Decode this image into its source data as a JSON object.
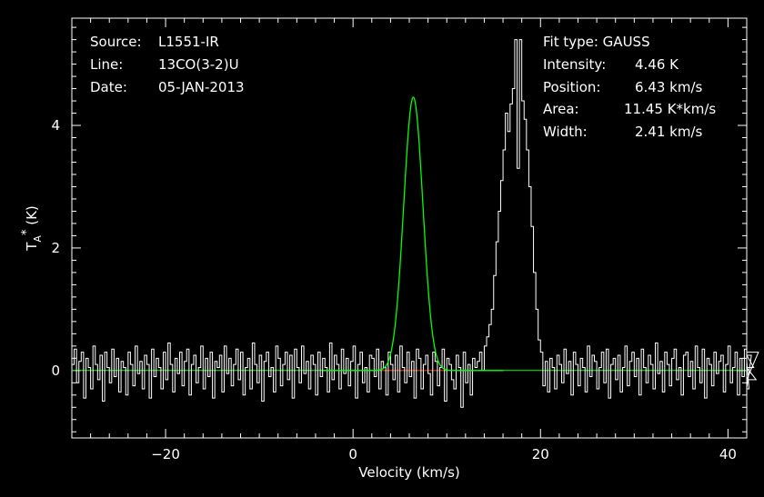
{
  "colors": {
    "background": "#000000",
    "axes": "#ffffff",
    "spectrum": "#ffffff",
    "fit": "#00ff00",
    "baseline_highlight": "#ff0000"
  },
  "header_left": [
    {
      "label": "Source:",
      "value": "L1551-IR"
    },
    {
      "label": "Line:",
      "value": "13CO(3-2)U"
    },
    {
      "label": "Date:",
      "value": "05-JAN-2013"
    }
  ],
  "header_right": {
    "fit_type": "Fit type: GAUSS",
    "rows": [
      {
        "label": "Intensity:",
        "value": "4.46 K"
      },
      {
        "label": "Position:",
        "value": "6.43 km/s"
      },
      {
        "label": "Area:",
        "value": "11.45 K*km/s"
      },
      {
        "label": "Width:",
        "value": "2.41 km/s"
      }
    ]
  },
  "chart_data": {
    "type": "line",
    "xlabel": "Velocity (km/s)",
    "ylabel": "T_A^* (K)",
    "xlim": [
      -30,
      42
    ],
    "ylim": [
      -1.1,
      5.75
    ],
    "x_ticks": [
      -20,
      0,
      20,
      40
    ],
    "x_tick_labels": [
      "−20",
      "0",
      "20",
      "40"
    ],
    "y_ticks": [
      0,
      2,
      4
    ],
    "y_tick_labels": [
      "0",
      "2",
      "4"
    ],
    "grid": false,
    "fit": {
      "intensity": 4.46,
      "position": 6.43,
      "width": 2.41,
      "area": 11.45
    },
    "spectrum": {
      "x_start": -30,
      "x_step": 0.25,
      "values": [
        0.1,
        0.35,
        -0.2,
        0.15,
        0.3,
        -0.45,
        0.2,
        0.05,
        -0.3,
        0.4,
        0.1,
        -0.15,
        0.25,
        -0.5,
        0.3,
        0.05,
        -0.2,
        0.35,
        -0.1,
        0.2,
        -0.35,
        0.15,
        0.05,
        -0.4,
        0.3,
        0.1,
        -0.25,
        0.4,
        -0.05,
        0.15,
        -0.3,
        0.25,
        0.1,
        -0.45,
        0.35,
        -0.1,
        0.2,
        0.05,
        -0.3,
        0.3,
        -0.15,
        0.45,
        0.1,
        -0.35,
        0.2,
        -0.05,
        0.3,
        -0.25,
        0.15,
        0.35,
        -0.4,
        0.1,
        0.25,
        -0.2,
        0.05,
        0.4,
        -0.3,
        0.2,
        -0.1,
        0.3,
        -0.45,
        0.15,
        0.05,
        0.25,
        -0.35,
        0.4,
        -0.05,
        0.2,
        -0.25,
        0.1,
        0.35,
        -0.15,
        0.3,
        -0.4,
        0.05,
        0.2,
        -0.3,
        0.45,
        0.1,
        -0.2,
        0.25,
        -0.5,
        0.15,
        0.3,
        -0.1,
        0.05,
        -0.35,
        0.4,
        0.2,
        -0.25,
        0.1,
        0.3,
        -0.15,
        0.25,
        -0.45,
        0.35,
        0.05,
        -0.2,
        0.4,
        -0.05,
        0.15,
        -0.3,
        0.25,
        0.1,
        -0.4,
        0.3,
        -0.1,
        0.2,
        0.05,
        -0.35,
        0.45,
        -0.15,
        0.25,
        0.1,
        -0.3,
        0.35,
        -0.05,
        0.2,
        -0.25,
        0.15,
        0.4,
        -0.45,
        0.1,
        0.3,
        -0.2,
        0.05,
        -0.35,
        0.25,
        0.2,
        -0.1,
        0.35,
        -0.3,
        0.15,
        0.05,
        -0.4,
        0.3,
        0.1,
        -0.15,
        0.25,
        -0.35,
        0.4,
        0.05,
        -0.2,
        0.3,
        -0.1,
        0.15,
        -0.45,
        0.35,
        0.2,
        -0.3,
        0.1,
        0.25,
        -0.05,
        -0.4,
        0.3,
        0.15,
        -0.25,
        0.05,
        0.35,
        -0.5,
        0.2,
        0.1,
        -0.15,
        -0.3,
        0.25,
        0.05,
        -0.6,
        0.3,
        -0.2,
        0.1,
        -0.4,
        0.2,
        0.05,
        0.15,
        0.3,
        0.0,
        0.4,
        0.55,
        0.75,
        1.0,
        1.55,
        2.1,
        2.6,
        3.1,
        3.6,
        4.2,
        3.9,
        4.35,
        4.6,
        5.4,
        3.3,
        5.4,
        4.4,
        4.1,
        3.6,
        3.0,
        2.35,
        1.6,
        1.0,
        0.5,
        0.3,
        -0.25,
        0.15,
        -0.35,
        0.2,
        0.05,
        -0.3,
        0.25,
        0.1,
        -0.2,
        0.35,
        -0.05,
        0.15,
        -0.4,
        0.3,
        0.1,
        -0.25,
        0.2,
        0.05,
        -0.35,
        0.4,
        -0.1,
        0.25,
        0.15,
        -0.3,
        0.05,
        0.3,
        -0.2,
        0.35,
        -0.45,
        0.1,
        0.2,
        -0.15,
        0.25,
        -0.35,
        0.05,
        0.4,
        -0.25,
        0.15,
        0.3,
        -0.1,
        0.2,
        -0.4,
        0.35,
        0.05,
        -0.2,
        0.25,
        0.1,
        -0.3,
        0.45,
        -0.05,
        0.15,
        -0.35,
        0.3,
        0.1,
        -0.25,
        0.2,
        0.35,
        -0.15,
        0.05,
        -0.4,
        0.25,
        0.3,
        -0.1,
        0.15,
        -0.3,
        0.4,
        0.05,
        -0.2,
        0.35,
        -0.45,
        0.2,
        0.1,
        -0.25,
        0.3,
        -0.05,
        0.15,
        0.25,
        -0.35,
        0.1,
        0.4,
        -0.2,
        0.05,
        0.3,
        -0.4,
        0.2,
        -0.1,
        0.35,
        0.15,
        -0.3,
        0.25,
        0.05,
        -0.15,
        0.3
      ]
    }
  }
}
